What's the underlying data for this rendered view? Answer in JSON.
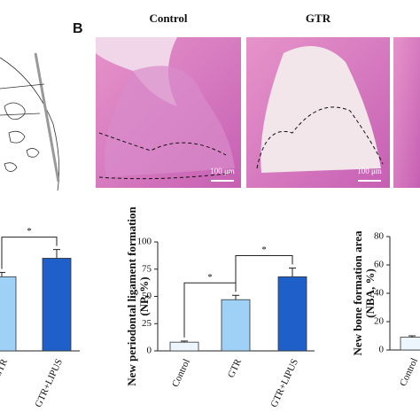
{
  "panel_b": {
    "label": "B",
    "images": [
      {
        "title": "Control",
        "scale": "100 μm"
      },
      {
        "title": "GTR",
        "scale": "100 μm"
      }
    ]
  },
  "chart_data": [
    {
      "type": "bar",
      "categories": [
        "GTR",
        "GTR+LIPUS"
      ],
      "values": [
        68,
        85
      ],
      "errors": [
        4,
        8
      ],
      "colors": [
        "#9fd1f7",
        "#1f5fc9"
      ],
      "ylim": [
        0,
        100
      ],
      "significance": [
        {
          "label": "*",
          "pair": [
            "GTR",
            "GTR+LIPUS"
          ]
        }
      ]
    },
    {
      "type": "bar",
      "ylabel": [
        "New periodontal ligament formation",
        "(NP, %)"
      ],
      "categories": [
        "Control",
        "GTR",
        "GTR+LIPUS"
      ],
      "values": [
        8,
        47,
        68
      ],
      "errors": [
        1,
        4,
        8
      ],
      "colors": [
        "#eef6fd",
        "#9fd1f7",
        "#1f5fc9"
      ],
      "ylim": [
        0,
        100
      ],
      "yticks": [
        0,
        25,
        50,
        75,
        100
      ],
      "significance": [
        {
          "label": "*",
          "pair": [
            "Control",
            "GTR"
          ]
        },
        {
          "label": "*",
          "pair": [
            "GTR",
            "GTR+LIPUS"
          ]
        }
      ]
    },
    {
      "type": "bar",
      "ylabel": [
        "New bone formation area",
        "(NBA, %)"
      ],
      "categories": [
        "Control"
      ],
      "values": [
        9
      ],
      "errors": [
        1
      ],
      "colors": [
        "#eef6fd"
      ],
      "ylim": [
        0,
        80
      ],
      "yticks": [
        0,
        20,
        40,
        60,
        80
      ]
    }
  ]
}
